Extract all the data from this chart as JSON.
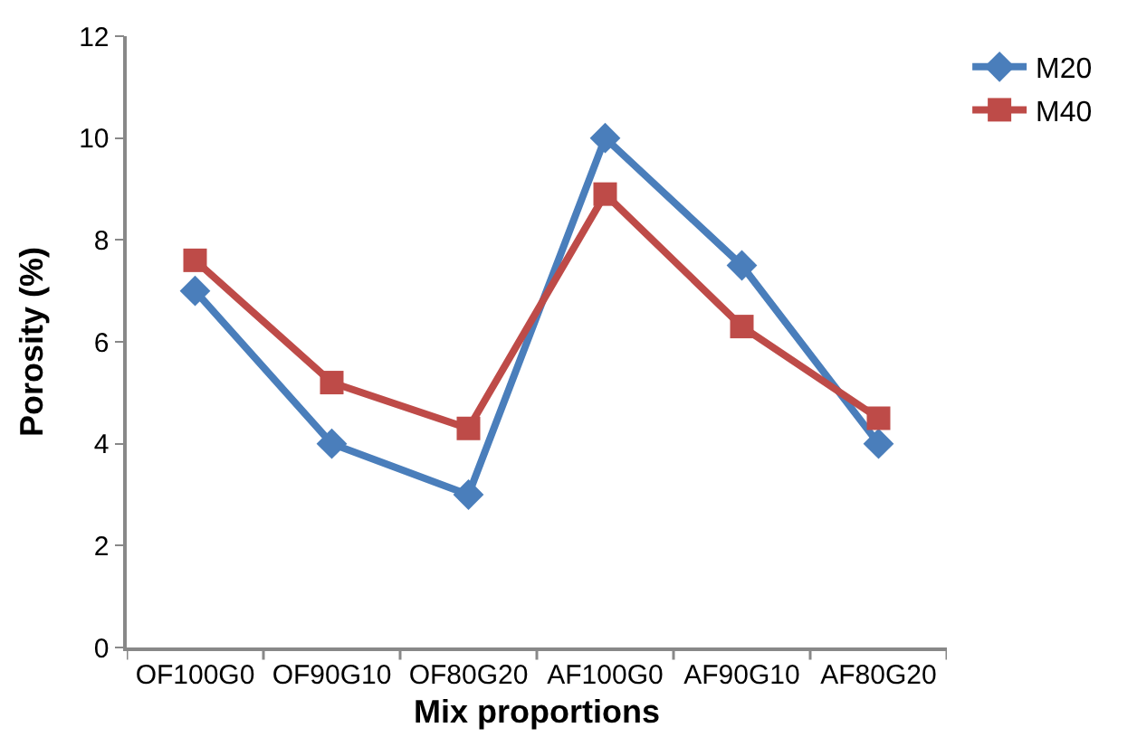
{
  "chart_data": {
    "type": "line",
    "xlabel": "Mix proportions",
    "ylabel": "Porosity (%)",
    "categories": [
      "OF100G0",
      "OF90G10",
      "OF80G20",
      "AF100G0",
      "AF90G10",
      "AF80G20"
    ],
    "series": [
      {
        "name": "M20",
        "color": "#4a7ebb",
        "marker": "diamond",
        "values": [
          7,
          4,
          3,
          10,
          7.5,
          4
        ]
      },
      {
        "name": "M40",
        "color": "#be4b48",
        "marker": "square",
        "values": [
          7.6,
          5.2,
          4.3,
          8.9,
          6.3,
          4.5
        ]
      }
    ],
    "ylim": [
      0,
      12
    ],
    "yticks": [
      0,
      2,
      4,
      6,
      8,
      10,
      12
    ],
    "grid": false,
    "legend": "top right"
  }
}
